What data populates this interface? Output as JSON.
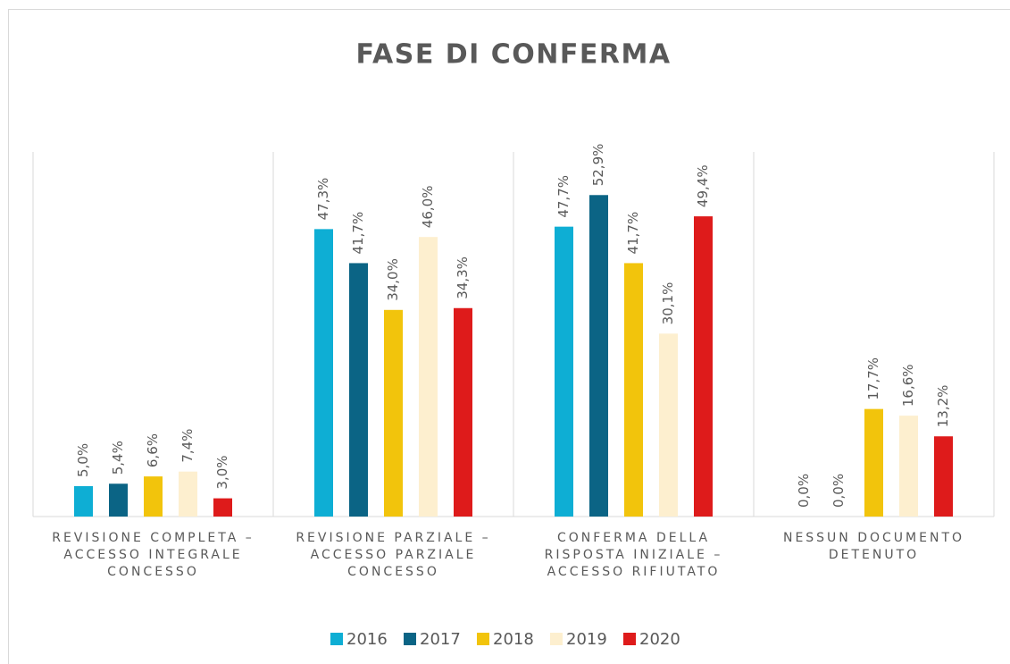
{
  "chart_data": {
    "type": "bar",
    "title": "FASE DI CONFERMA",
    "categories": [
      "REVISIONE COMPLETA – ACCESSO INTEGRALE CONCESSO",
      "REVISIONE PARZIALE – ACCESSO PARZIALE CONCESSO",
      "CONFERMA DELLA RISPOSTA INIZIALE – ACCESSO RIFIUTATO",
      "NESSUN DOCUMENTO DETENUTO"
    ],
    "series": [
      {
        "name": "2016",
        "color": "#0eaed4",
        "values": [
          5.0,
          47.3,
          47.7,
          0.0
        ],
        "value_labels": [
          "5,0%",
          "47,3%",
          "47,7%",
          "0,0%"
        ]
      },
      {
        "name": "2017",
        "color": "#0b6485",
        "values": [
          5.4,
          41.7,
          52.9,
          0.0
        ],
        "value_labels": [
          "5,4%",
          "41,7%",
          "52,9%",
          "0,0%"
        ]
      },
      {
        "name": "2018",
        "color": "#f2c40c",
        "values": [
          6.6,
          34.0,
          41.7,
          17.7
        ],
        "value_labels": [
          "6,6%",
          "34,0%",
          "41,7%",
          "17,7%"
        ]
      },
      {
        "name": "2019",
        "color": "#fdefcf",
        "values": [
          7.4,
          46.0,
          30.1,
          16.6
        ],
        "value_labels": [
          "7,4%",
          "46,0%",
          "30,1%",
          "16,6%"
        ]
      },
      {
        "name": "2020",
        "color": "#de1b1b",
        "values": [
          3.0,
          34.3,
          49.4,
          13.2
        ],
        "value_labels": [
          "3,0%",
          "34,3%",
          "49,4%",
          "13,2%"
        ]
      }
    ],
    "ylim": [
      0,
      60
    ],
    "grid": false,
    "legend": "bottom"
  }
}
